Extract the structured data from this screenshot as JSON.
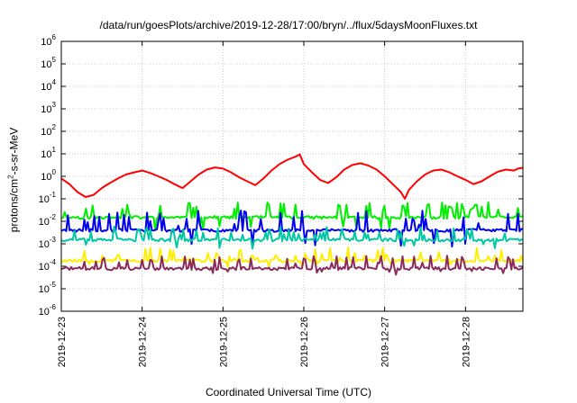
{
  "chart_data": {
    "type": "line",
    "title": "/data/run/goesPlots/archive/2019-12-28/17:00/bryn/../flux/5daysMoonFluxes.txt",
    "xlabel": "Coordinated Universal Time (UTC)",
    "ylabel_main": "protons/cm",
    "ylabel_sup": "2",
    "ylabel_tail": "-s-sr-MeV",
    "yscale": "log",
    "ylim": [
      1e-06,
      1000000.0
    ],
    "xlim": [
      "2019-12-23 00:00",
      "2019-12-28 17:00"
    ],
    "grid": true,
    "y_ticks": [
      {
        "base": "10",
        "exp": "-6"
      },
      {
        "base": "10",
        "exp": "-5"
      },
      {
        "base": "10",
        "exp": "-4"
      },
      {
        "base": "10",
        "exp": "-3"
      },
      {
        "base": "10",
        "exp": "-2"
      },
      {
        "base": "10",
        "exp": "-1"
      },
      {
        "base": "10",
        "exp": "0"
      },
      {
        "base": "10",
        "exp": "1"
      },
      {
        "base": "10",
        "exp": "2"
      },
      {
        "base": "10",
        "exp": "3"
      },
      {
        "base": "10",
        "exp": "4"
      },
      {
        "base": "10",
        "exp": "5"
      },
      {
        "base": "10",
        "exp": "6"
      }
    ],
    "x_ticks": [
      "2019-12-23",
      "2019-12-24",
      "2019-12-25",
      "2019-12-26",
      "2019-12-27",
      "2019-12-28"
    ],
    "series": [
      {
        "color": "#ff0000",
        "baseline": 1.0,
        "values": [
          [
            0.0,
            0.8
          ],
          [
            0.1,
            0.45
          ],
          [
            0.2,
            0.2
          ],
          [
            0.3,
            0.12
          ],
          [
            0.4,
            0.15
          ],
          [
            0.5,
            0.3
          ],
          [
            0.6,
            0.5
          ],
          [
            0.7,
            0.8
          ],
          [
            0.8,
            1.2
          ],
          [
            0.9,
            1.5
          ],
          [
            1.0,
            1.8
          ],
          [
            1.1,
            1.4
          ],
          [
            1.2,
            1.0
          ],
          [
            1.3,
            0.7
          ],
          [
            1.4,
            0.45
          ],
          [
            1.5,
            0.3
          ],
          [
            1.6,
            0.6
          ],
          [
            1.7,
            1.2
          ],
          [
            1.8,
            2.0
          ],
          [
            1.9,
            2.5
          ],
          [
            2.0,
            2.2
          ],
          [
            2.1,
            1.5
          ],
          [
            2.2,
            0.9
          ],
          [
            2.3,
            0.6
          ],
          [
            2.4,
            0.4
          ],
          [
            2.5,
            0.8
          ],
          [
            2.6,
            1.8
          ],
          [
            2.7,
            3.5
          ],
          [
            2.8,
            5.5
          ],
          [
            2.9,
            7.5
          ],
          [
            2.95,
            9.5
          ],
          [
            3.0,
            3.5
          ],
          [
            3.1,
            1.5
          ],
          [
            3.2,
            0.7
          ],
          [
            3.3,
            0.5
          ],
          [
            3.4,
            0.9
          ],
          [
            3.5,
            2.0
          ],
          [
            3.6,
            3.2
          ],
          [
            3.7,
            3.8
          ],
          [
            3.8,
            3.0
          ],
          [
            3.9,
            2.0
          ],
          [
            4.0,
            1.0
          ],
          [
            4.1,
            0.45
          ],
          [
            4.2,
            0.2
          ],
          [
            4.25,
            0.1
          ],
          [
            4.3,
            0.25
          ],
          [
            4.4,
            0.6
          ],
          [
            4.5,
            1.2
          ],
          [
            4.6,
            1.8
          ],
          [
            4.7,
            2.0
          ],
          [
            4.8,
            1.5
          ],
          [
            4.9,
            1.0
          ],
          [
            5.0,
            0.7
          ],
          [
            5.1,
            0.45
          ],
          [
            5.2,
            0.6
          ],
          [
            5.3,
            1.0
          ],
          [
            5.4,
            1.6
          ],
          [
            5.5,
            2.0
          ],
          [
            5.6,
            1.8
          ],
          [
            5.65,
            2.2
          ],
          [
            5.71,
            2.4
          ]
        ]
      },
      {
        "color": "#00ee00",
        "baseline": 0.015,
        "noise_seed": 11,
        "spike_to": 0.07,
        "dip_to": 0.005
      },
      {
        "color": "#0000ee",
        "baseline": 0.004,
        "noise_seed": 23,
        "spike_to": 0.03,
        "dip_to": 0.0008
      },
      {
        "color": "#00c8a0",
        "baseline": 0.0015,
        "noise_seed": 37,
        "spike_to": 0.005,
        "dip_to": 0.0007
      },
      {
        "color": "#ffee00",
        "baseline": 0.00018,
        "noise_seed": 53,
        "spike_to": 0.0004,
        "dip_to": 0.0001
      },
      {
        "color": "#8b2a5a",
        "baseline": 8e-05,
        "noise_seed": 71,
        "spike_to": 0.0003,
        "dip_to": 5e-05
      }
    ]
  }
}
